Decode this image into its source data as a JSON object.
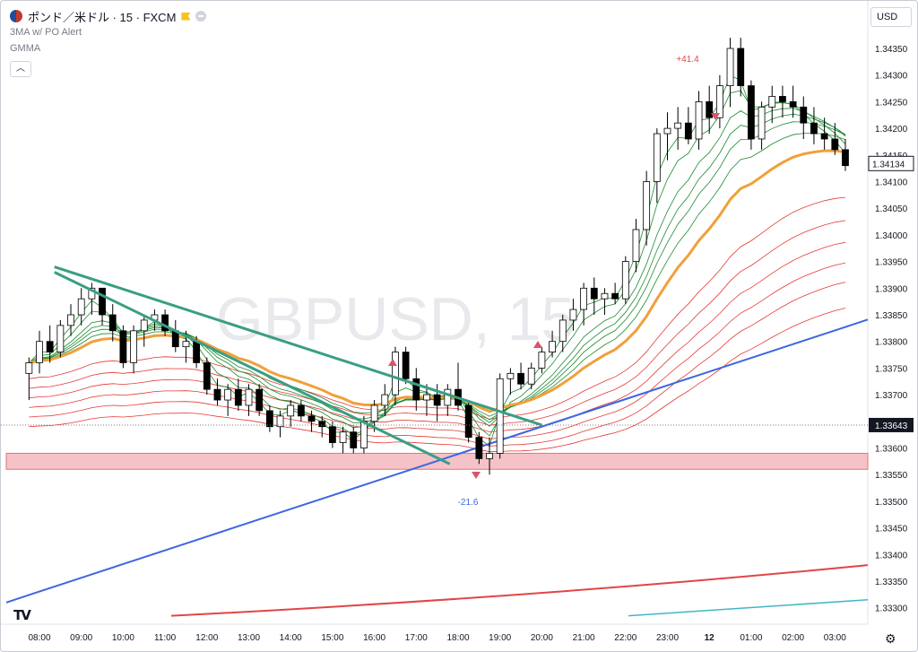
{
  "header": {
    "symbol_title": "ポンド／米ドル · 15 · FXCM",
    "indicator_1": "3MA w/ PO Alert",
    "indicator_2": "GMMA",
    "currency": "USD",
    "icons": [
      "coin-icon",
      "flag-icon",
      "minus-circle-icon",
      "chevron-up-icon",
      "tv-logo-icon",
      "gear-icon"
    ]
  },
  "watermark": "GBPUSD, 15",
  "colors": {
    "up_candle": "#ffffff",
    "down_candle": "#000000",
    "short_gmma": "#1b8a2e",
    "long_gmma": "#e53935",
    "orange_ma": "#f0a03a",
    "blue_ma": "#3d66e0",
    "red_ma": "#e04646",
    "cyan_ma": "#41b7c4",
    "trendline": "#3a9e84",
    "zone": "#f5c2c7",
    "marker": "#d9546b"
  },
  "chart_data": {
    "type": "candlestick",
    "x_ticks": [
      "08:00",
      "09:00",
      "10:00",
      "11:00",
      "12:00",
      "13:00",
      "14:00",
      "15:00",
      "16:00",
      "17:00",
      "18:00",
      "19:00",
      "20:00",
      "21:00",
      "22:00",
      "23:00",
      "12",
      "01:00",
      "02:00",
      "03:00"
    ],
    "y_ticks": [
      "1.34350",
      "1.34300",
      "1.34250",
      "1.34200",
      "1.34150",
      "1.34100",
      "1.34050",
      "1.34000",
      "1.33950",
      "1.33900",
      "1.33850",
      "1.33800",
      "1.33750",
      "1.33700",
      "1.33650",
      "1.33600",
      "1.33550",
      "1.33500",
      "1.33450",
      "1.33400",
      "1.33350",
      "1.33300"
    ],
    "ylim": [
      1.3328,
      1.3441
    ],
    "last_price": "1.34134",
    "ref_price": "1.33643",
    "annotations": [
      {
        "text": "+41.4",
        "time": "19:45 (12 01:15)",
        "value": "high"
      },
      {
        "text": "-21.6",
        "time": "18:30",
        "value": "low"
      }
    ],
    "zone": [
      1.3356,
      1.3359
    ],
    "trendlines": [
      [
        [
          9.0,
          1.3394
        ],
        [
          20.0,
          1.33643
        ]
      ],
      [
        [
          9.0,
          1.3393
        ],
        [
          17.8,
          1.3357
        ]
      ]
    ],
    "candles": [
      [
        7.75,
        1.3374,
        1.3377,
        1.3369,
        1.3376
      ],
      [
        8.0,
        1.3376,
        1.3382,
        1.3374,
        1.338
      ],
      [
        8.25,
        1.338,
        1.3383,
        1.3376,
        1.3378
      ],
      [
        8.5,
        1.3378,
        1.3384,
        1.3377,
        1.3383
      ],
      [
        8.75,
        1.3383,
        1.3387,
        1.3381,
        1.3385
      ],
      [
        9.0,
        1.3385,
        1.339,
        1.3383,
        1.3388
      ],
      [
        9.25,
        1.3388,
        1.3391,
        1.3385,
        1.339
      ],
      [
        9.5,
        1.339,
        1.339,
        1.3383,
        1.3385
      ],
      [
        9.75,
        1.3385,
        1.3387,
        1.338,
        1.3382
      ],
      [
        10.0,
        1.3382,
        1.3383,
        1.3375,
        1.3376
      ],
      [
        10.25,
        1.3376,
        1.3383,
        1.3374,
        1.3382
      ],
      [
        10.5,
        1.3382,
        1.3385,
        1.3379,
        1.3384
      ],
      [
        10.75,
        1.3384,
        1.3386,
        1.3382,
        1.3385
      ],
      [
        11.0,
        1.3385,
        1.3386,
        1.3381,
        1.3382
      ],
      [
        11.25,
        1.3382,
        1.3384,
        1.3378,
        1.3379
      ],
      [
        11.5,
        1.3379,
        1.3382,
        1.3376,
        1.338
      ],
      [
        11.75,
        1.338,
        1.3381,
        1.3375,
        1.3376
      ],
      [
        12.0,
        1.3376,
        1.3377,
        1.337,
        1.3371
      ],
      [
        12.25,
        1.3371,
        1.3373,
        1.3368,
        1.3369
      ],
      [
        12.5,
        1.3369,
        1.3372,
        1.3366,
        1.3371
      ],
      [
        12.75,
        1.3371,
        1.3373,
        1.3367,
        1.3368
      ],
      [
        13.0,
        1.3368,
        1.3372,
        1.3366,
        1.3371
      ],
      [
        13.25,
        1.3371,
        1.3372,
        1.3366,
        1.3367
      ],
      [
        13.5,
        1.3367,
        1.3368,
        1.3363,
        1.3364
      ],
      [
        13.75,
        1.3364,
        1.3367,
        1.3362,
        1.3366
      ],
      [
        14.0,
        1.3366,
        1.3369,
        1.3364,
        1.3368
      ],
      [
        14.25,
        1.3368,
        1.3369,
        1.3365,
        1.3366
      ],
      [
        14.5,
        1.3366,
        1.3367,
        1.3363,
        1.3365
      ],
      [
        14.75,
        1.3365,
        1.3366,
        1.3362,
        1.3364
      ],
      [
        15.0,
        1.3364,
        1.3365,
        1.336,
        1.3361
      ],
      [
        15.25,
        1.3361,
        1.3364,
        1.3359,
        1.3363
      ],
      [
        15.5,
        1.3363,
        1.3364,
        1.3359,
        1.336
      ],
      [
        15.75,
        1.336,
        1.3366,
        1.3359,
        1.3365
      ],
      [
        16.0,
        1.3365,
        1.3369,
        1.3363,
        1.3368
      ],
      [
        16.25,
        1.3368,
        1.3372,
        1.3366,
        1.337
      ],
      [
        16.5,
        1.337,
        1.3379,
        1.3368,
        1.3378
      ],
      [
        16.75,
        1.3378,
        1.3379,
        1.3372,
        1.3373
      ],
      [
        17.0,
        1.3373,
        1.3375,
        1.3367,
        1.3369
      ],
      [
        17.25,
        1.3369,
        1.3372,
        1.3366,
        1.337
      ],
      [
        17.5,
        1.337,
        1.3372,
        1.3365,
        1.3368
      ],
      [
        17.75,
        1.3368,
        1.3372,
        1.3366,
        1.3371
      ],
      [
        18.0,
        1.3371,
        1.3376,
        1.3367,
        1.3368
      ],
      [
        18.25,
        1.3368,
        1.3369,
        1.3361,
        1.3362
      ],
      [
        18.5,
        1.3362,
        1.3363,
        1.3357,
        1.3358
      ],
      [
        18.75,
        1.3358,
        1.3362,
        1.3355,
        1.3359
      ],
      [
        19.0,
        1.3359,
        1.3374,
        1.3358,
        1.3373
      ],
      [
        19.25,
        1.3373,
        1.3375,
        1.337,
        1.3374
      ],
      [
        19.5,
        1.3374,
        1.3376,
        1.3371,
        1.3372
      ],
      [
        19.75,
        1.3372,
        1.3376,
        1.3371,
        1.3375
      ],
      [
        20.0,
        1.3375,
        1.3379,
        1.3374,
        1.3378
      ],
      [
        20.25,
        1.3378,
        1.3382,
        1.3377,
        1.338
      ],
      [
        20.5,
        1.338,
        1.3385,
        1.3378,
        1.3384
      ],
      [
        20.75,
        1.3384,
        1.3388,
        1.3382,
        1.3386
      ],
      [
        21.0,
        1.3386,
        1.3391,
        1.3383,
        1.339
      ],
      [
        21.25,
        1.339,
        1.3392,
        1.3385,
        1.3388
      ],
      [
        21.5,
        1.3388,
        1.339,
        1.3385,
        1.3389
      ],
      [
        21.75,
        1.3389,
        1.3391,
        1.3387,
        1.3388
      ],
      [
        22.0,
        1.3388,
        1.3396,
        1.3387,
        1.3395
      ],
      [
        22.25,
        1.3395,
        1.3403,
        1.3393,
        1.3401
      ],
      [
        22.5,
        1.3401,
        1.3412,
        1.3398,
        1.341
      ],
      [
        22.75,
        1.341,
        1.342,
        1.3406,
        1.3419
      ],
      [
        23.0,
        1.3419,
        1.3423,
        1.3414,
        1.342
      ],
      [
        23.25,
        1.342,
        1.3424,
        1.3416,
        1.3421
      ],
      [
        23.5,
        1.3421,
        1.3424,
        1.3417,
        1.3418
      ],
      [
        23.75,
        1.3418,
        1.3427,
        1.3416,
        1.3425
      ],
      [
        24.0,
        1.3425,
        1.3428,
        1.3419,
        1.3422
      ],
      [
        24.25,
        1.3422,
        1.343,
        1.342,
        1.3428
      ],
      [
        24.5,
        1.3428,
        1.3437,
        1.3424,
        1.3435
      ],
      [
        24.75,
        1.3435,
        1.3437,
        1.3426,
        1.3428
      ],
      [
        25.0,
        1.3428,
        1.3429,
        1.3416,
        1.3418
      ],
      [
        25.25,
        1.3418,
        1.3425,
        1.3416,
        1.3424
      ],
      [
        25.5,
        1.3424,
        1.3428,
        1.3421,
        1.3426
      ],
      [
        25.75,
        1.3426,
        1.3428,
        1.3422,
        1.3425
      ],
      [
        26.0,
        1.3425,
        1.3428,
        1.3422,
        1.3424
      ],
      [
        26.25,
        1.3424,
        1.3426,
        1.3418,
        1.3421
      ],
      [
        26.5,
        1.3421,
        1.3424,
        1.3417,
        1.3419
      ],
      [
        26.75,
        1.3419,
        1.3422,
        1.3416,
        1.3418
      ],
      [
        27.0,
        1.3418,
        1.3421,
        1.3415,
        1.3416
      ],
      [
        27.25,
        1.3416,
        1.3418,
        1.3412,
        1.3413
      ]
    ]
  }
}
